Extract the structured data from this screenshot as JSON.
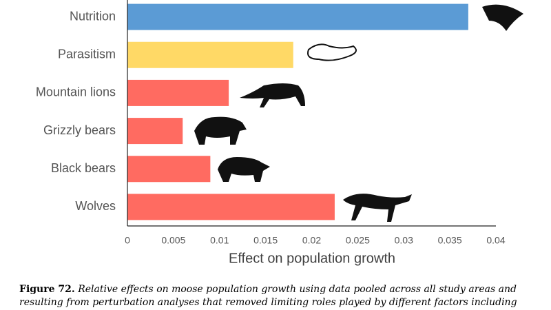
{
  "chart_data": {
    "type": "barh",
    "categories": [
      "Nutrition",
      "Parasitism",
      "Mountain lions",
      "Grizzly bears",
      "Black bears",
      "Wolves"
    ],
    "values": [
      0.037,
      0.018,
      0.011,
      0.006,
      0.009,
      0.0225
    ],
    "colors": [
      "#5b9bd5",
      "#ffd966",
      "#ff6b61",
      "#ff6b61",
      "#ff6b61",
      "#ff6b61"
    ],
    "xlabel": "Effect on population growth",
    "xlim": [
      0,
      0.04
    ],
    "xticks": [
      0,
      0.005,
      0.01,
      0.015,
      0.02,
      0.025,
      0.03,
      0.035,
      0.04
    ],
    "grid": false
  },
  "caption": {
    "label": "Figure 72.",
    "text": "Relative effects on moose population growth using data pooled across all study areas and resulting from perturbation analyses that removed limiting roles played by different factors including"
  }
}
